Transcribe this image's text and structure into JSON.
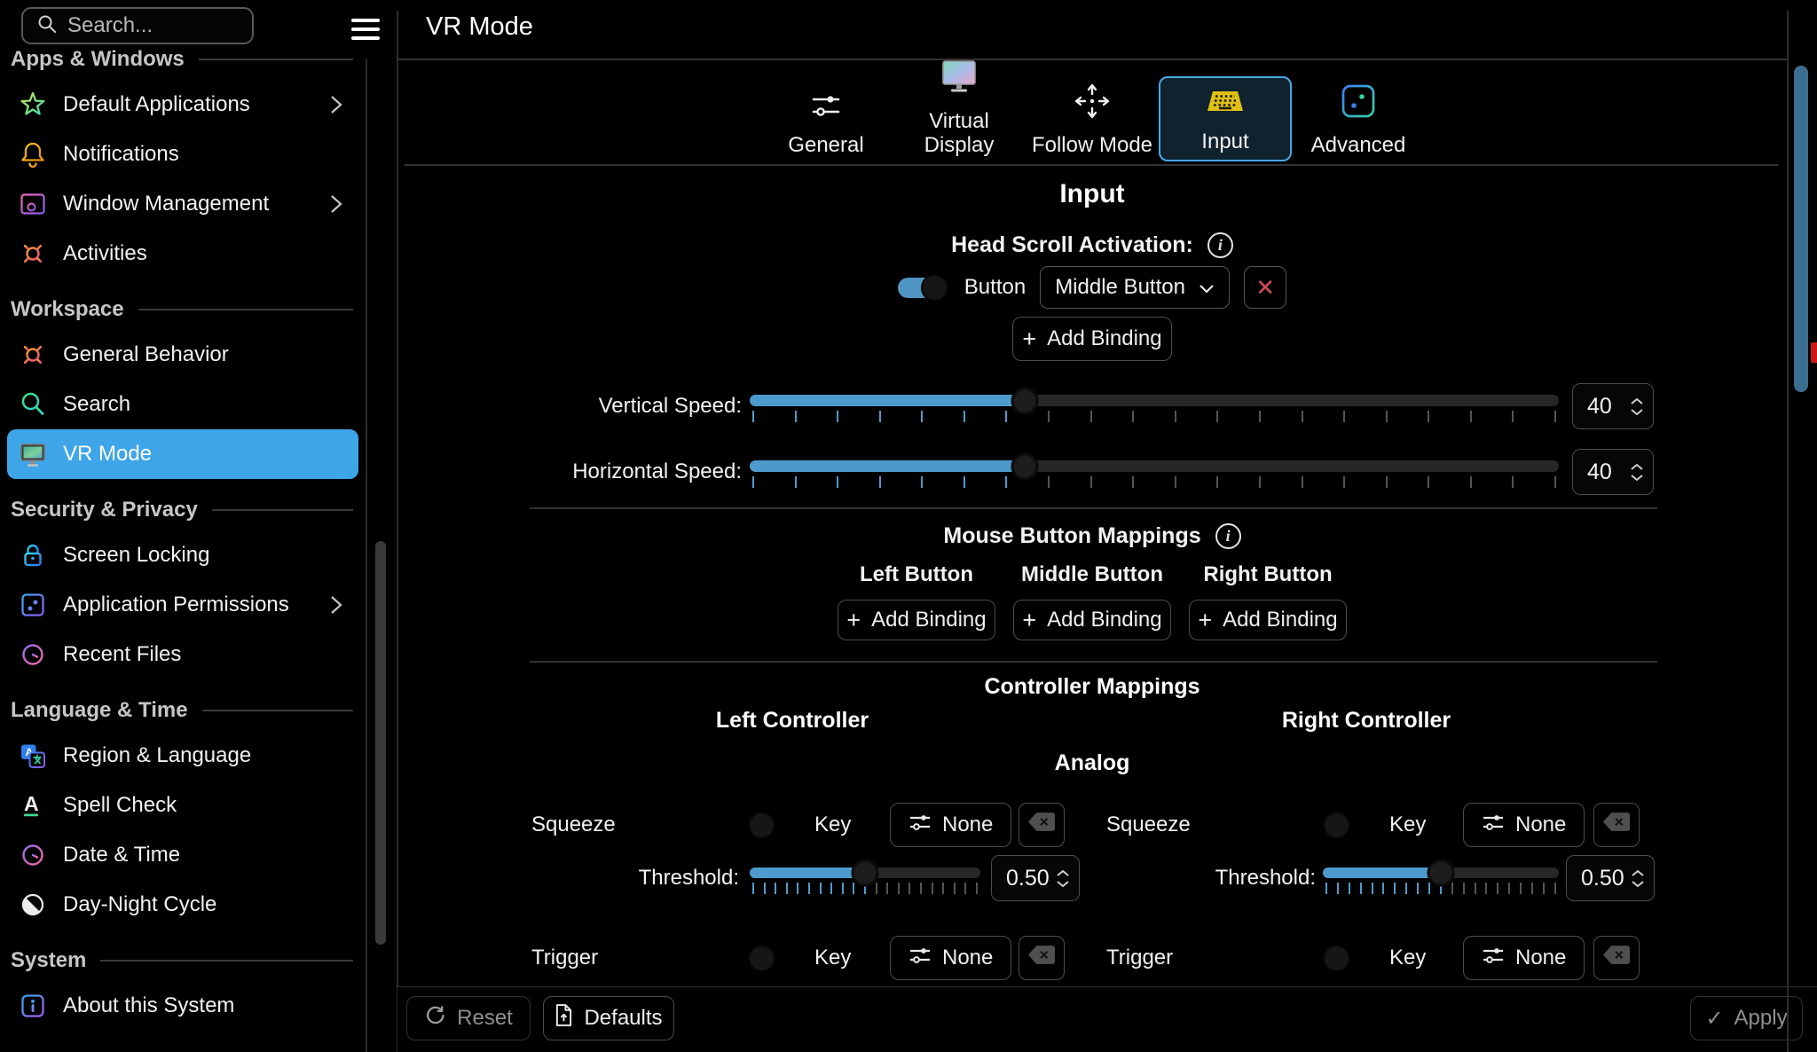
{
  "header": {
    "search_placeholder": "Search...",
    "title": "VR Mode"
  },
  "sidebar": {
    "sections": [
      {
        "label": "Apps & Windows",
        "items": [
          {
            "label": "Default Applications"
          },
          {
            "label": "Notifications"
          },
          {
            "label": "Window Management"
          },
          {
            "label": "Activities"
          }
        ]
      },
      {
        "label": "Workspace",
        "items": [
          {
            "label": "General Behavior"
          },
          {
            "label": "Search"
          },
          {
            "label": "VR Mode"
          }
        ]
      },
      {
        "label": "Security & Privacy",
        "items": [
          {
            "label": "Screen Locking"
          },
          {
            "label": "Application Permissions"
          },
          {
            "label": "Recent Files"
          }
        ]
      },
      {
        "label": "Language & Time",
        "items": [
          {
            "label": "Region & Language"
          },
          {
            "label": "Spell Check"
          },
          {
            "label": "Date & Time"
          },
          {
            "label": "Day-Night Cycle"
          }
        ]
      },
      {
        "label": "System",
        "items": [
          {
            "label": "About this System"
          }
        ]
      }
    ]
  },
  "tabs": {
    "items": [
      {
        "label": "General"
      },
      {
        "label": "Virtual Display"
      },
      {
        "label": "Follow Mode"
      },
      {
        "label": "Input"
      },
      {
        "label": "Advanced"
      }
    ]
  },
  "input_page": {
    "heading": "Input",
    "head_scroll": {
      "title": "Head Scroll Activation:",
      "type_label": "Button",
      "selected_option": "Middle Button",
      "add_binding_label": "Add Binding"
    },
    "sliders": {
      "vertical": {
        "label": "Vertical Speed:",
        "value": "40"
      },
      "horizontal": {
        "label": "Horizontal Speed:",
        "value": "40"
      }
    },
    "mouse_mappings": {
      "title": "Mouse Button Mappings",
      "columns": [
        {
          "label": "Left Button",
          "button_label": "Add Binding"
        },
        {
          "label": "Middle Button",
          "button_label": "Add Binding"
        },
        {
          "label": "Right Button",
          "button_label": "Add Binding"
        }
      ]
    },
    "controller_mappings": {
      "title": "Controller Mappings",
      "analog_title": "Analog",
      "left": {
        "title": "Left Controller",
        "squeeze": {
          "label": "Squeeze",
          "key_label": "Key",
          "binding_label": "None",
          "threshold_label": "Threshold:",
          "threshold_value": "0.50"
        },
        "trigger": {
          "label": "Trigger",
          "key_label": "Key",
          "binding_label": "None"
        }
      },
      "right": {
        "title": "Right Controller",
        "squeeze": {
          "label": "Squeeze",
          "key_label": "Key",
          "binding_label": "None",
          "threshold_label": "Threshold:",
          "threshold_value": "0.50"
        },
        "trigger": {
          "label": "Trigger",
          "key_label": "Key",
          "binding_label": "None"
        }
      }
    }
  },
  "footer": {
    "reset": "Reset",
    "defaults": "Defaults",
    "apply": "Apply"
  },
  "icons": {
    "plus": "+",
    "close": "✕",
    "check": "✓",
    "info": "i"
  },
  "colors": {
    "accent_blue": "#3EA5E9",
    "slider_fill": "#4D9BCC",
    "selected_tab_border": "#47A8E5",
    "danger_red": "#D24B5A",
    "content_scrollbar_blue": "#3C6E90",
    "keyboard_icon_yellow": "#DFC013"
  }
}
